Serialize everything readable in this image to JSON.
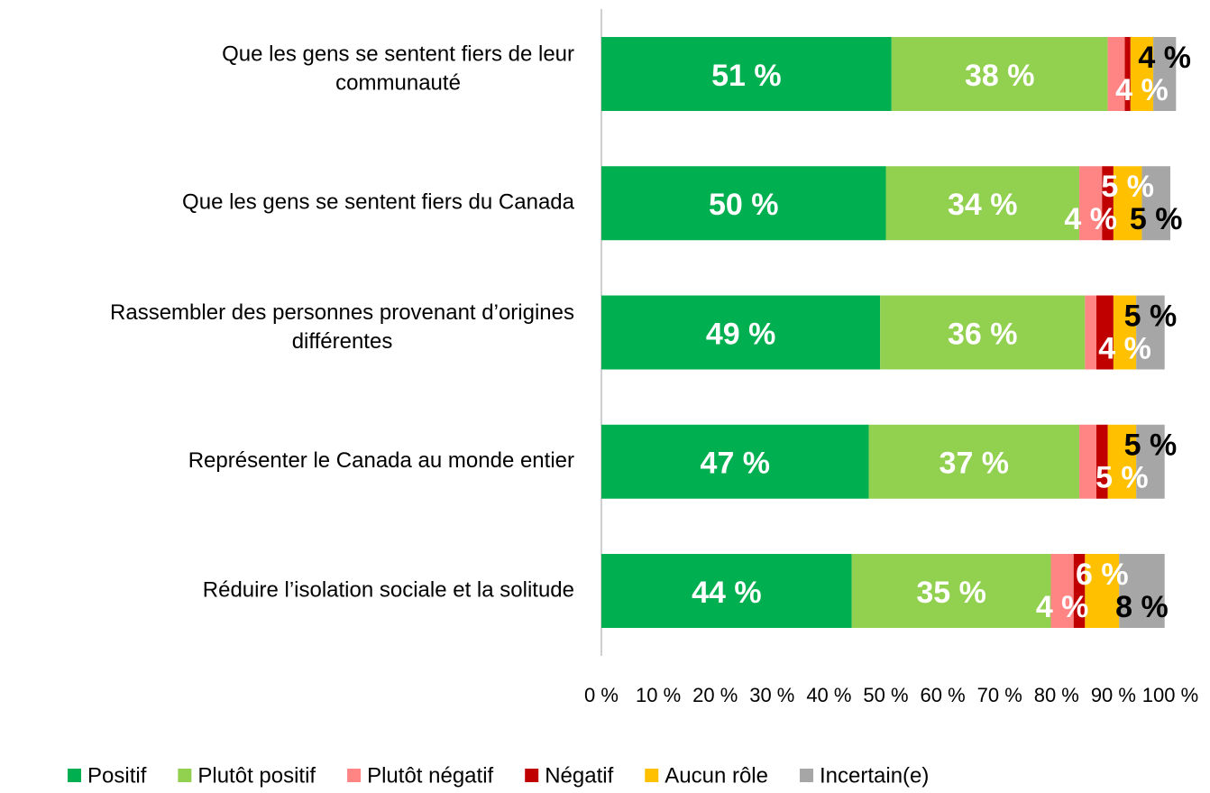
{
  "chart_data": {
    "type": "stacked_barh",
    "categories": [
      [
        "Que les gens se sentent fiers de leur",
        "communauté"
      ],
      [
        "Que les gens se sentent fiers du Canada"
      ],
      [
        "Rassembler des personnes provenant d’origines",
        "différentes"
      ],
      [
        "Représenter le Canada au monde entier"
      ],
      [
        "Réduire l’isolation sociale et la solitude"
      ]
    ],
    "series": [
      {
        "name": "Positif",
        "color": "#00b050",
        "values": [
          51,
          50,
          49,
          47,
          44
        ],
        "value_labels": [
          "51 %",
          "50 %",
          "49 %",
          "47 %",
          "44 %"
        ]
      },
      {
        "name": "Plutôt positif",
        "color": "#92d050",
        "values": [
          38,
          34,
          36,
          37,
          35
        ],
        "value_labels": [
          "38 %",
          "34 %",
          "36 %",
          "37 %",
          "35 %"
        ]
      },
      {
        "name": "Plutôt négatif",
        "color": "#ff8585",
        "values": [
          3,
          4,
          2,
          3,
          4
        ],
        "value_labels": [
          null,
          "4 %",
          null,
          null,
          "4 %"
        ]
      },
      {
        "name": "Négatif",
        "color": "#c00000",
        "values": [
          1,
          2,
          3,
          2,
          2
        ],
        "value_labels": [
          null,
          null,
          null,
          null,
          null
        ]
      },
      {
        "name": "Aucun rôle",
        "color": "#ffc000",
        "values": [
          4,
          5,
          4,
          5,
          6
        ],
        "value_labels": [
          "4 %",
          "5 %",
          "4 %",
          "5 %",
          "6 %"
        ]
      },
      {
        "name": "Incertain(e)",
        "color": "#a6a6a6",
        "values": [
          4,
          5,
          5,
          5,
          8
        ],
        "value_labels": [
          "4 %",
          "5 %",
          "5 %",
          "5 %",
          "8 %"
        ]
      }
    ],
    "xlim": [
      0,
      100
    ],
    "xticks": [
      {
        "value": 0,
        "label": "0 %"
      },
      {
        "value": 10,
        "label": "10 %"
      },
      {
        "value": 20,
        "label": "20 %"
      },
      {
        "value": 30,
        "label": "30 %"
      },
      {
        "value": 40,
        "label": "40 %"
      },
      {
        "value": 50,
        "label": "50 %"
      },
      {
        "value": 60,
        "label": "60 %"
      },
      {
        "value": 70,
        "label": "70 %"
      },
      {
        "value": 80,
        "label": "80 %"
      },
      {
        "value": 90,
        "label": "90 %"
      },
      {
        "value": 100,
        "label": "100 %"
      }
    ],
    "legend": "bottom"
  }
}
